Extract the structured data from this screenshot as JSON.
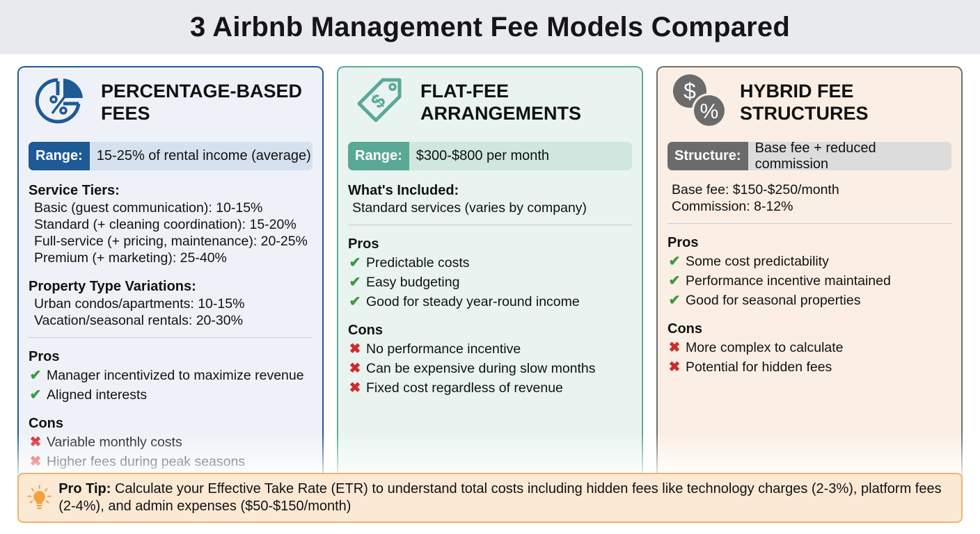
{
  "title": "3 Airbnb Management Fee Models Compared",
  "cards": [
    {
      "icon": "percentage-pie-icon",
      "title_lines": [
        "PERCENTAGE-BASED",
        "FEES"
      ],
      "pill_label": "Range:",
      "pill_value": "15-25% of rental income (average)",
      "colors": {
        "border": "#1f5a94",
        "bg": "#eef2f8",
        "label": "#1e5a96",
        "value": "#d6e1ef"
      },
      "sections": [
        {
          "kind": "tier",
          "heading": "Service Tiers:",
          "items": [
            "Basic (guest communication): 10-15%",
            "Standard (+ cleaning coordination): 15-20%",
            "Full-service (+ pricing, maintenance): 20-25%",
            "Premium (+ marketing): 25-40%"
          ]
        },
        {
          "kind": "tier",
          "heading": "Property Type Variations:",
          "items": [
            "Urban condos/apartments: 10-15%",
            "Vacation/seasonal rentals: 20-30%"
          ],
          "divider": true
        },
        {
          "kind": "pros",
          "heading": "Pros",
          "items": [
            "Manager incentivized to maximize revenue",
            "Aligned interests"
          ]
        },
        {
          "kind": "cons",
          "heading": "Cons",
          "items": [
            "Variable monthly costs",
            "Higher fees during peak seasons"
          ]
        }
      ]
    },
    {
      "icon": "price-tag-dollar-icon",
      "title_lines": [
        "FLAT-FEE",
        "ARRANGEMENTS"
      ],
      "pill_label": "Range:",
      "pill_value": "$300-$800 per month",
      "colors": {
        "border": "#5aa89a",
        "bg": "#e9f4f0",
        "label": "#5aa896",
        "value": "#cfe7df"
      },
      "sections": [
        {
          "kind": "plain",
          "heading": "What's Included:",
          "items": [
            "Standard services (varies by company)"
          ],
          "divider": true
        },
        {
          "kind": "pros",
          "heading": "Pros",
          "items": [
            "Predictable costs",
            "Easy budgeting",
            "Good for steady year-round income"
          ]
        },
        {
          "kind": "cons",
          "heading": "Cons",
          "items": [
            "No performance incentive",
            "Can be expensive during slow months",
            "Fixed cost regardless of revenue"
          ]
        }
      ]
    },
    {
      "icon": "dollar-percent-coins-icon",
      "title_lines": [
        "HYBRID FEE",
        "STRUCTURES"
      ],
      "pill_label": "Structure:",
      "pill_value": "Base fee + reduced commission",
      "colors": {
        "border": "#6e6e6e",
        "bg": "#fbefe5",
        "label": "#6b6b6b",
        "value": "#dcdcdc"
      },
      "sections": [
        {
          "kind": "plain",
          "heading": "",
          "items": [
            "Base fee: $150-$250/month",
            "Commission: 8-12%"
          ],
          "divider": true
        },
        {
          "kind": "pros",
          "heading": "Pros",
          "items": [
            "Some cost predictability",
            "Performance incentive maintained",
            "Good for seasonal properties"
          ]
        },
        {
          "kind": "cons",
          "heading": "Cons",
          "items": [
            "More complex to calculate",
            "Potential for hidden fees"
          ]
        }
      ]
    }
  ],
  "tip": {
    "icon": "lightbulb-icon",
    "label": "Pro Tip:",
    "text": "Calculate your Effective Take Rate (ETR) to understand total costs including hidden fees like technology charges (2-3%), platform fees (2-4%), and admin expenses ($50-$150/month)"
  }
}
